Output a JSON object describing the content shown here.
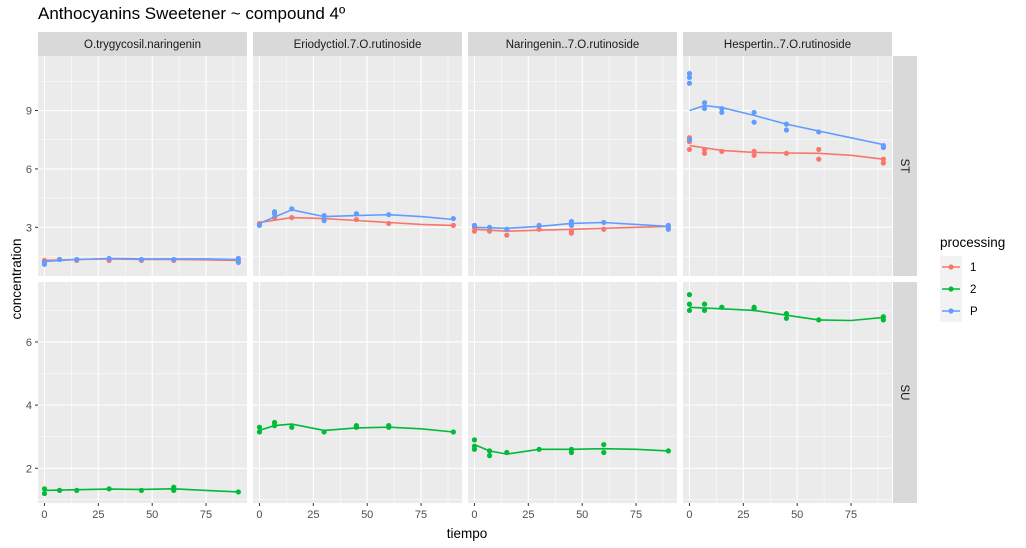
{
  "chart_data": {
    "type": "scatter",
    "title": "Anthocyanins Sweetener ~ compound 4º",
    "xlabel": "tiempo",
    "ylabel": "concentration",
    "x_ticks": [
      0,
      25,
      50,
      75
    ],
    "xlim": [
      -3,
      94
    ],
    "columns": [
      "O.trygycosil.naringenin",
      "Eriodyctiol.7.O.rutinoside",
      "Naringenin..7.O.rutinoside",
      "Hespertin..7.O.rutinoside"
    ],
    "rows": [
      {
        "label": "ST",
        "ylim": [
          0.5,
          11.8
        ],
        "y_ticks": [
          3,
          6,
          9
        ]
      },
      {
        "label": "SU",
        "ylim": [
          0.9,
          7.9
        ],
        "y_ticks": [
          2,
          4,
          6
        ]
      }
    ],
    "legend": {
      "title": "processing",
      "placement": "right",
      "entries": [
        {
          "label": "1",
          "color": "#F8766D"
        },
        {
          "label": "2",
          "color": "#00BA38"
        },
        {
          "label": "P",
          "color": "#619CFF"
        }
      ]
    },
    "panels": [
      {
        "row": 0,
        "col": 0,
        "series": [
          {
            "group": "1",
            "points": [
              [
                0,
                1.2
              ],
              [
                0,
                1.3
              ],
              [
                7,
                1.35
              ],
              [
                15,
                1.3
              ],
              [
                30,
                1.3
              ],
              [
                45,
                1.3
              ],
              [
                60,
                1.3
              ],
              [
                90,
                1.3
              ]
            ],
            "smooth": [
              [
                0,
                1.3
              ],
              [
                15,
                1.35
              ],
              [
                30,
                1.38
              ],
              [
                45,
                1.35
              ],
              [
                60,
                1.35
              ],
              [
                75,
                1.33
              ],
              [
                90,
                1.3
              ]
            ]
          },
          {
            "group": "P",
            "points": [
              [
                0,
                1.1
              ],
              [
                0,
                1.2
              ],
              [
                7,
                1.35
              ],
              [
                15,
                1.35
              ],
              [
                30,
                1.4
              ],
              [
                45,
                1.35
              ],
              [
                60,
                1.35
              ],
              [
                90,
                1.4
              ],
              [
                90,
                1.2
              ]
            ],
            "smooth": [
              [
                0,
                1.25
              ],
              [
                15,
                1.35
              ],
              [
                30,
                1.4
              ],
              [
                45,
                1.38
              ],
              [
                60,
                1.38
              ],
              [
                75,
                1.38
              ],
              [
                90,
                1.35
              ]
            ]
          }
        ]
      },
      {
        "row": 0,
        "col": 1,
        "series": [
          {
            "group": "1",
            "points": [
              [
                0,
                3.2
              ],
              [
                7,
                3.5
              ],
              [
                15,
                3.5
              ],
              [
                30,
                3.4
              ],
              [
                45,
                3.4
              ],
              [
                60,
                3.2
              ],
              [
                90,
                3.1
              ]
            ],
            "smooth": [
              [
                0,
                3.25
              ],
              [
                15,
                3.5
              ],
              [
                30,
                3.45
              ],
              [
                45,
                3.35
              ],
              [
                60,
                3.25
              ],
              [
                75,
                3.15
              ],
              [
                90,
                3.1
              ]
            ]
          },
          {
            "group": "P",
            "points": [
              [
                0,
                3.1
              ],
              [
                7,
                3.7
              ],
              [
                7,
                3.8
              ],
              [
                15,
                3.95
              ],
              [
                30,
                3.6
              ],
              [
                30,
                3.35
              ],
              [
                45,
                3.7
              ],
              [
                60,
                3.65
              ],
              [
                90,
                3.45
              ]
            ],
            "smooth": [
              [
                0,
                3.2
              ],
              [
                15,
                3.9
              ],
              [
                30,
                3.55
              ],
              [
                45,
                3.6
              ],
              [
                60,
                3.65
              ],
              [
                75,
                3.55
              ],
              [
                90,
                3.4
              ]
            ]
          }
        ]
      },
      {
        "row": 0,
        "col": 2,
        "series": [
          {
            "group": "1",
            "points": [
              [
                0,
                3.0
              ],
              [
                0,
                2.8
              ],
              [
                7,
                2.8
              ],
              [
                15,
                2.6
              ],
              [
                30,
                2.9
              ],
              [
                45,
                2.8
              ],
              [
                45,
                2.7
              ],
              [
                60,
                2.9
              ],
              [
                90,
                3.0
              ]
            ],
            "smooth": [
              [
                0,
                2.9
              ],
              [
                15,
                2.8
              ],
              [
                30,
                2.85
              ],
              [
                45,
                2.9
              ],
              [
                60,
                2.95
              ],
              [
                75,
                3.0
              ],
              [
                90,
                3.05
              ]
            ]
          },
          {
            "group": "P",
            "points": [
              [
                0,
                3.1
              ],
              [
                7,
                3.0
              ],
              [
                15,
                2.9
              ],
              [
                30,
                3.1
              ],
              [
                45,
                3.3
              ],
              [
                45,
                3.1
              ],
              [
                60,
                3.25
              ],
              [
                90,
                3.1
              ],
              [
                90,
                2.9
              ]
            ],
            "smooth": [
              [
                0,
                3.0
              ],
              [
                15,
                2.95
              ],
              [
                30,
                3.05
              ],
              [
                45,
                3.2
              ],
              [
                60,
                3.25
              ],
              [
                75,
                3.15
              ],
              [
                90,
                3.05
              ]
            ]
          }
        ]
      },
      {
        "row": 0,
        "col": 3,
        "series": [
          {
            "group": "1",
            "points": [
              [
                0,
                7.6
              ],
              [
                0,
                7.4
              ],
              [
                0,
                7.0
              ],
              [
                7,
                7.0
              ],
              [
                7,
                6.8
              ],
              [
                15,
                6.9
              ],
              [
                30,
                6.9
              ],
              [
                30,
                6.7
              ],
              [
                45,
                6.8
              ],
              [
                60,
                7.0
              ],
              [
                60,
                6.5
              ],
              [
                90,
                6.5
              ],
              [
                90,
                6.3
              ]
            ],
            "smooth": [
              [
                0,
                7.2
              ],
              [
                15,
                6.95
              ],
              [
                30,
                6.85
              ],
              [
                45,
                6.82
              ],
              [
                60,
                6.8
              ],
              [
                75,
                6.7
              ],
              [
                90,
                6.5
              ]
            ]
          },
          {
            "group": "P",
            "points": [
              [
                0,
                10.9
              ],
              [
                0,
                10.7
              ],
              [
                0,
                10.4
              ],
              [
                0,
                7.5
              ],
              [
                7,
                9.4
              ],
              [
                7,
                9.1
              ],
              [
                15,
                9.1
              ],
              [
                15,
                8.9
              ],
              [
                30,
                8.9
              ],
              [
                30,
                8.4
              ],
              [
                45,
                8.3
              ],
              [
                45,
                8.0
              ],
              [
                60,
                7.9
              ],
              [
                90,
                7.2
              ],
              [
                90,
                7.1
              ]
            ],
            "smooth": [
              [
                0,
                9.0
              ],
              [
                7,
                9.25
              ],
              [
                15,
                9.15
              ],
              [
                30,
                8.75
              ],
              [
                45,
                8.3
              ],
              [
                60,
                7.95
              ],
              [
                75,
                7.6
              ],
              [
                90,
                7.25
              ]
            ]
          }
        ]
      },
      {
        "row": 1,
        "col": 0,
        "series": [
          {
            "group": "2",
            "points": [
              [
                0,
                1.35
              ],
              [
                0,
                1.2
              ],
              [
                7,
                1.3
              ],
              [
                15,
                1.3
              ],
              [
                30,
                1.35
              ],
              [
                45,
                1.3
              ],
              [
                60,
                1.4
              ],
              [
                60,
                1.3
              ],
              [
                90,
                1.25
              ]
            ],
            "smooth": [
              [
                0,
                1.3
              ],
              [
                15,
                1.32
              ],
              [
                30,
                1.34
              ],
              [
                45,
                1.33
              ],
              [
                60,
                1.35
              ],
              [
                75,
                1.3
              ],
              [
                90,
                1.25
              ]
            ]
          }
        ]
      },
      {
        "row": 1,
        "col": 1,
        "series": [
          {
            "group": "2",
            "points": [
              [
                0,
                3.3
              ],
              [
                0,
                3.15
              ],
              [
                7,
                3.45
              ],
              [
                7,
                3.35
              ],
              [
                15,
                3.3
              ],
              [
                30,
                3.15
              ],
              [
                45,
                3.35
              ],
              [
                45,
                3.3
              ],
              [
                60,
                3.35
              ],
              [
                60,
                3.3
              ],
              [
                90,
                3.15
              ]
            ],
            "smooth": [
              [
                0,
                3.2
              ],
              [
                7,
                3.35
              ],
              [
                15,
                3.4
              ],
              [
                30,
                3.2
              ],
              [
                45,
                3.28
              ],
              [
                60,
                3.3
              ],
              [
                75,
                3.25
              ],
              [
                90,
                3.15
              ]
            ]
          }
        ]
      },
      {
        "row": 1,
        "col": 2,
        "series": [
          {
            "group": "2",
            "points": [
              [
                0,
                2.9
              ],
              [
                0,
                2.7
              ],
              [
                0,
                2.6
              ],
              [
                7,
                2.55
              ],
              [
                7,
                2.4
              ],
              [
                15,
                2.5
              ],
              [
                30,
                2.6
              ],
              [
                45,
                2.6
              ],
              [
                45,
                2.5
              ],
              [
                60,
                2.75
              ],
              [
                60,
                2.5
              ],
              [
                90,
                2.55
              ]
            ],
            "smooth": [
              [
                0,
                2.75
              ],
              [
                7,
                2.55
              ],
              [
                15,
                2.45
              ],
              [
                30,
                2.6
              ],
              [
                45,
                2.6
              ],
              [
                60,
                2.62
              ],
              [
                75,
                2.6
              ],
              [
                90,
                2.55
              ]
            ]
          }
        ]
      },
      {
        "row": 1,
        "col": 3,
        "series": [
          {
            "group": "2",
            "points": [
              [
                0,
                7.5
              ],
              [
                0,
                7.2
              ],
              [
                0,
                7.0
              ],
              [
                7,
                7.2
              ],
              [
                7,
                7.0
              ],
              [
                15,
                7.1
              ],
              [
                30,
                7.1
              ],
              [
                30,
                7.05
              ],
              [
                45,
                6.9
              ],
              [
                45,
                6.75
              ],
              [
                60,
                6.7
              ],
              [
                90,
                6.8
              ],
              [
                90,
                6.7
              ]
            ],
            "smooth": [
              [
                0,
                7.1
              ],
              [
                15,
                7.05
              ],
              [
                30,
                7.0
              ],
              [
                45,
                6.85
              ],
              [
                60,
                6.7
              ],
              [
                75,
                6.68
              ],
              [
                90,
                6.78
              ]
            ]
          }
        ]
      }
    ]
  }
}
